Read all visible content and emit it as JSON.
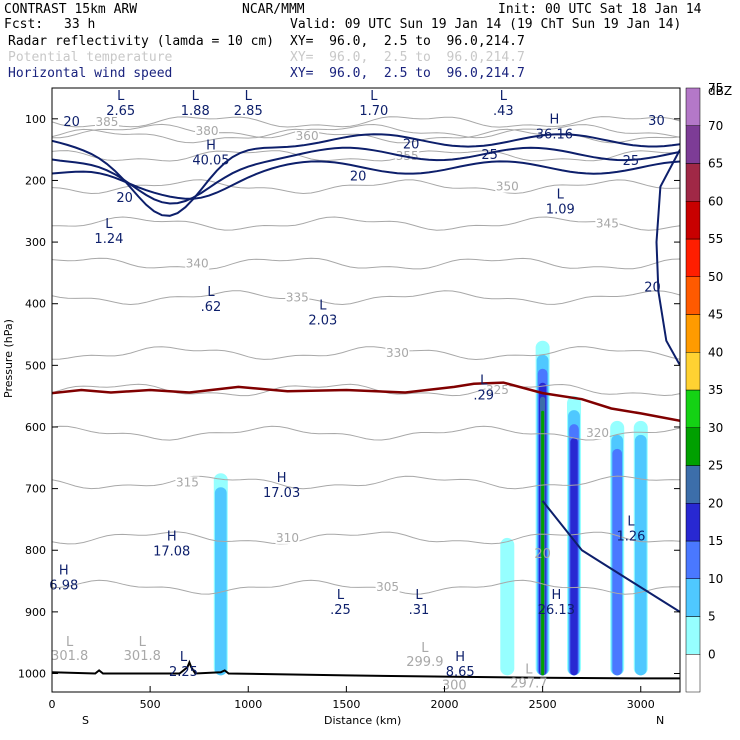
{
  "header": {
    "model": "CONTRAST 15km ARW",
    "org": "NCAR/MMM",
    "init": "Init: 00 UTC Sat 18 Jan 14",
    "fcst_label": "Fcst:",
    "fcst_value": "33 h",
    "valid": "Valid: 09 UTC Sun 19 Jan 14 (19 ChT Sun 19 Jan 14)",
    "fields": [
      {
        "name": "Radar reflectivity (lamda = 10 cm)",
        "xy": "XY=  96.0,  2.5 to  96.0,214.7"
      },
      {
        "name": "Potential temperature",
        "xy": "XY=  96.0,  2.5 to  96.0,214.7"
      },
      {
        "name": "Horizontal wind speed",
        "xy": "XY=  96.0,  2.5 to  96.0,214.7"
      }
    ]
  },
  "colors": {
    "wind": "#0d1f6b",
    "theta": "#a8a8a8",
    "freezing": "#800000",
    "terrain": "#000000"
  },
  "chart_data": {
    "type": "heatmap",
    "title": "Radar reflectivity (lamda = 10 cm) / Potential temperature / Horizontal wind speed",
    "xlabel": "Distance (km)",
    "ylabel": "Pressure (hPa)",
    "xlim": [
      0,
      3200
    ],
    "ylim": [
      1030,
      50
    ],
    "x_ticks": [
      0,
      500,
      1000,
      1500,
      2000,
      2500,
      3000
    ],
    "y_ticks": [
      100,
      200,
      300,
      400,
      500,
      600,
      700,
      800,
      900,
      1000
    ],
    "end_labels": {
      "left": "S",
      "right": "N"
    },
    "colorbar": {
      "unit": "dBZ",
      "levels": [
        0,
        5,
        10,
        15,
        20,
        25,
        30,
        35,
        40,
        45,
        50,
        55,
        60,
        65,
        70,
        75
      ],
      "colors": [
        "#ffffff",
        "#96ffff",
        "#4fc8ff",
        "#4a78ff",
        "#2828d2",
        "#3c6eaa",
        "#00a000",
        "#14d214",
        "#ffd232",
        "#ff9b00",
        "#ff5a00",
        "#ff1e00",
        "#c80000",
        "#a02846",
        "#7d3c96",
        "#b478c8"
      ]
    },
    "theta_contours": [
      {
        "label": "385",
        "p": 105
      },
      {
        "label": "380",
        "p": 120
      },
      {
        "label": "360",
        "p": 128
      },
      {
        "label": "355",
        "p": 160
      },
      {
        "label": "350",
        "p": 210
      },
      {
        "label": "345",
        "p": 270
      },
      {
        "label": "340",
        "p": 335
      },
      {
        "label": "335",
        "p": 390
      },
      {
        "label": "330",
        "p": 480
      },
      {
        "label": "325",
        "p": 540
      },
      {
        "label": "320",
        "p": 610
      },
      {
        "label": "315",
        "p": 690
      },
      {
        "label": "310",
        "p": 780
      },
      {
        "label": "305",
        "p": 860
      }
    ],
    "wind_contours": [
      {
        "label": "20",
        "x": 100,
        "p": 112
      },
      {
        "label": "30",
        "x": 3080,
        "p": 110
      },
      {
        "label": "25",
        "x": 2950,
        "p": 175
      },
      {
        "label": "25",
        "x": 2230,
        "p": 165
      },
      {
        "label": "20",
        "x": 1830,
        "p": 148
      },
      {
        "label": "20",
        "x": 1560,
        "p": 200
      },
      {
        "label": "20",
        "x": 370,
        "p": 235
      },
      {
        "label": "20",
        "x": 3060,
        "p": 380
      }
    ],
    "freezing_level": [
      {
        "x": 0,
        "p": 545
      },
      {
        "x": 150,
        "p": 540
      },
      {
        "x": 300,
        "p": 544
      },
      {
        "x": 500,
        "p": 540
      },
      {
        "x": 700,
        "p": 544
      },
      {
        "x": 950,
        "p": 535
      },
      {
        "x": 1200,
        "p": 542
      },
      {
        "x": 1500,
        "p": 540
      },
      {
        "x": 1800,
        "p": 544
      },
      {
        "x": 2050,
        "p": 535
      },
      {
        "x": 2150,
        "p": 530
      },
      {
        "x": 2300,
        "p": 528
      },
      {
        "x": 2500,
        "p": 545
      },
      {
        "x": 2700,
        "p": 555
      },
      {
        "x": 2850,
        "p": 570
      },
      {
        "x": 3000,
        "p": 578
      },
      {
        "x": 3200,
        "p": 590
      }
    ],
    "annotations": [
      {
        "text": "L",
        "value": "2.65",
        "x": 350,
        "p": 50
      },
      {
        "text": "L",
        "value": "1.88",
        "x": 730,
        "p": 50
      },
      {
        "text": "L",
        "value": "2.85",
        "x": 1000,
        "p": 50
      },
      {
        "text": "L",
        "value": "1.70",
        "x": 1640,
        "p": 50
      },
      {
        "text": "L",
        "value": ".43",
        "x": 2300,
        "p": 50
      },
      {
        "text": "H",
        "value": "36.16",
        "x": 2560,
        "p": 88
      },
      {
        "text": "H",
        "value": "40.05",
        "x": 810,
        "p": 130
      },
      {
        "text": "L",
        "value": "1.09",
        "x": 2590,
        "p": 210
      },
      {
        "text": "L",
        "value": "1.24",
        "x": 290,
        "p": 258
      },
      {
        "text": "L",
        "value": ".62",
        "x": 810,
        "p": 368
      },
      {
        "text": "L",
        "value": "2.03",
        "x": 1380,
        "p": 390
      },
      {
        "text": "L",
        "value": ".29",
        "x": 2200,
        "p": 512
      },
      {
        "text": "H",
        "value": "17.03",
        "x": 1170,
        "p": 670
      },
      {
        "text": "H",
        "value": "17.08",
        "x": 610,
        "p": 765
      },
      {
        "text": "H",
        "value": "6.98",
        "x": 60,
        "p": 820
      },
      {
        "text": "L",
        "value": "1.26",
        "x": 2950,
        "p": 740
      },
      {
        "text": "L",
        "value": ".25",
        "x": 1470,
        "p": 860
      },
      {
        "text": "L",
        "value": ".31",
        "x": 1870,
        "p": 860
      },
      {
        "text": "H",
        "value": "26.13",
        "x": 2570,
        "p": 860
      },
      {
        "text": "L",
        "value": "2.25",
        "x": 670,
        "p": 960
      },
      {
        "text": "H",
        "value": "8.65",
        "x": 2080,
        "p": 960
      }
    ],
    "theta_extra_labels": [
      {
        "text": "L",
        "value": "301.8",
        "x": 90,
        "p": 955
      },
      {
        "text": "L",
        "value": "301.8",
        "x": 460,
        "p": 955
      },
      {
        "text": "L",
        "value": "299.9",
        "x": 1900,
        "p": 965
      },
      {
        "text": "L",
        "value": "297.7",
        "x": 2430,
        "p": 1000
      },
      {
        "text": "",
        "value": "300",
        "x": 2050,
        "p": 1003
      },
      {
        "text": "",
        "value": "20",
        "x": 2500,
        "p": 790
      }
    ],
    "reflectivity_cells": [
      {
        "x": 860,
        "p_top": 675,
        "p_bot": 1003,
        "dbz": 10
      },
      {
        "x": 2500,
        "p_top": 460,
        "p_bot": 1003,
        "dbz": 35
      },
      {
        "x": 2660,
        "p_top": 550,
        "p_bot": 1003,
        "dbz": 20
      },
      {
        "x": 2880,
        "p_top": 590,
        "p_bot": 1003,
        "dbz": 15
      },
      {
        "x": 3000,
        "p_top": 590,
        "p_bot": 1003,
        "dbz": 10
      },
      {
        "x": 2320,
        "p_top": 780,
        "p_bot": 1003,
        "dbz": 5
      }
    ]
  }
}
